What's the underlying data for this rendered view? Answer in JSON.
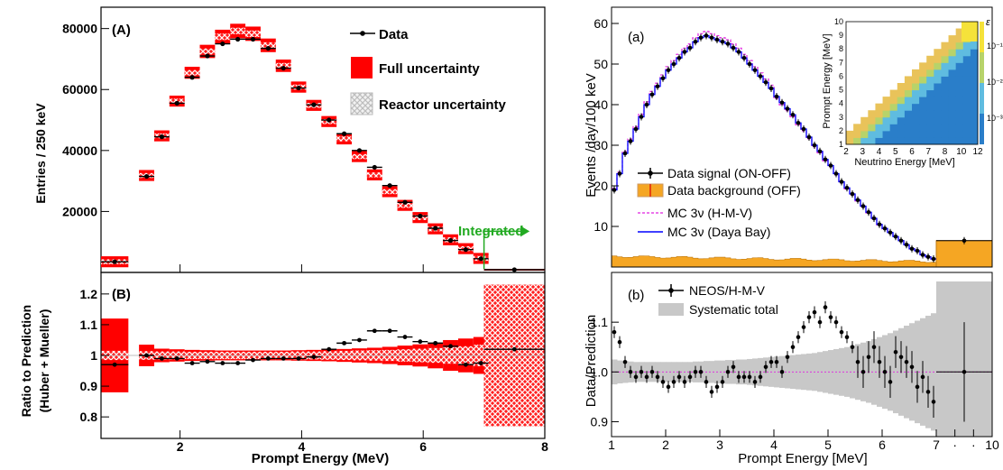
{
  "chart_data": [
    {
      "type": "bar",
      "panel": "(A)",
      "ylabel": "Entries / 250 keV",
      "xlim": [
        0.7,
        8
      ],
      "ylim": [
        0,
        87000
      ],
      "yticks": [
        20000,
        40000,
        60000,
        80000
      ],
      "xticks": [],
      "x": [
        0.925,
        1.45,
        1.7,
        1.95,
        2.2,
        2.45,
        2.7,
        2.95,
        3.2,
        3.45,
        3.7,
        3.95,
        4.2,
        4.45,
        4.7,
        4.95,
        5.2,
        5.45,
        5.7,
        5.95,
        6.2,
        6.45,
        6.7,
        6.95,
        7.5
      ],
      "data": [
        3500,
        31500,
        44500,
        55500,
        64000,
        71000,
        75000,
        76500,
        76500,
        73500,
        67000,
        60500,
        55000,
        50000,
        45500,
        40000,
        34500,
        28500,
        23000,
        18500,
        14500,
        10500,
        7500,
        4500,
        900
      ],
      "prediction": [
        3500,
        31800,
        44800,
        56200,
        65500,
        72500,
        77300,
        79200,
        78300,
        74500,
        67800,
        60800,
        54800,
        49500,
        43800,
        38000,
        32000,
        26500,
        22000,
        18000,
        14300,
        10700,
        7800,
        4600,
        900
      ],
      "annotation": "Integrated",
      "legend": [
        "Data",
        "Full uncertainty",
        "Reactor uncertainty"
      ],
      "colors": {
        "data": "#000000",
        "full": "#ff0000",
        "reactor": "#d9d9d9",
        "annotation": "#22aa22"
      }
    },
    {
      "type": "scatter",
      "panel": "(B)",
      "xlabel": "Prompt Energy (MeV)",
      "ylabel": "Ratio to Prediction",
      "ylabel2": "(Huber + Mueller)",
      "xlim": [
        0.7,
        8
      ],
      "ylim": [
        0.73,
        1.27
      ],
      "xticks": [
        2,
        4,
        6,
        8
      ],
      "yticks": [
        "0.8",
        "0.9",
        "1",
        "1.1",
        "1.2"
      ],
      "x": [
        0.925,
        1.45,
        1.7,
        1.95,
        2.2,
        2.45,
        2.7,
        2.95,
        3.2,
        3.45,
        3.7,
        3.95,
        4.2,
        4.45,
        4.7,
        4.95,
        5.2,
        5.45,
        5.7,
        5.95,
        6.2,
        6.45,
        6.7,
        6.95,
        7.5
      ],
      "ratio": [
        0.97,
        1.0,
        0.99,
        0.99,
        0.975,
        0.98,
        0.975,
        0.975,
        0.985,
        0.99,
        0.99,
        0.99,
        0.995,
        1.02,
        1.04,
        1.05,
        1.08,
        1.08,
        1.06,
        1.045,
        1.04,
        1.03,
        0.97,
        0.975,
        1.02
      ],
      "full_unc_half": [
        0.12,
        0.035,
        0.022,
        0.02,
        0.018,
        0.017,
        0.016,
        0.016,
        0.016,
        0.016,
        0.016,
        0.017,
        0.018,
        0.019,
        0.021,
        0.023,
        0.025,
        0.028,
        0.032,
        0.036,
        0.042,
        0.05,
        0.055,
        0.06,
        0.23
      ],
      "reactor_unc_half": [
        0.015,
        0.014,
        0.013,
        0.013,
        0.012,
        0.012,
        0.012,
        0.012,
        0.012,
        0.012,
        0.012,
        0.013,
        0.013,
        0.014,
        0.015,
        0.016,
        0.017,
        0.018,
        0.02,
        0.022,
        0.024,
        0.027,
        0.03,
        0.035,
        0.23
      ]
    },
    {
      "type": "line",
      "panel": "(a)",
      "ylabel": "Events /day/100 keV",
      "xlim": [
        1,
        10
      ],
      "ylim": [
        0,
        64
      ],
      "yticks": [
        10,
        20,
        30,
        40,
        50,
        60
      ],
      "data_signal": [
        [
          1.05,
          19
        ],
        [
          1.15,
          23
        ],
        [
          1.25,
          28
        ],
        [
          1.35,
          31
        ],
        [
          1.45,
          34
        ],
        [
          1.55,
          37
        ],
        [
          1.65,
          40
        ],
        [
          1.75,
          42.5
        ],
        [
          1.85,
          44.5
        ],
        [
          1.95,
          46.5
        ],
        [
          2.05,
          48.5
        ],
        [
          2.15,
          50
        ],
        [
          2.25,
          51.5
        ],
        [
          2.35,
          53
        ],
        [
          2.45,
          54
        ],
        [
          2.55,
          55.5
        ],
        [
          2.65,
          56.5
        ],
        [
          2.75,
          57
        ],
        [
          2.85,
          56.5
        ],
        [
          2.95,
          56
        ],
        [
          3.05,
          55.5
        ],
        [
          3.15,
          55
        ],
        [
          3.25,
          54
        ],
        [
          3.35,
          53
        ],
        [
          3.45,
          51.5
        ],
        [
          3.55,
          50
        ],
        [
          3.65,
          48.5
        ],
        [
          3.75,
          47
        ],
        [
          3.85,
          45.5
        ],
        [
          3.95,
          44
        ],
        [
          4.05,
          42
        ],
        [
          4.15,
          40.5
        ],
        [
          4.25,
          39
        ],
        [
          4.35,
          37.5
        ],
        [
          4.45,
          35.5
        ],
        [
          4.55,
          34
        ],
        [
          4.65,
          32
        ],
        [
          4.75,
          30
        ],
        [
          4.85,
          28.5
        ],
        [
          4.95,
          26.5
        ],
        [
          5.05,
          25
        ],
        [
          5.15,
          23
        ],
        [
          5.25,
          21
        ],
        [
          5.35,
          19.5
        ],
        [
          5.45,
          18
        ],
        [
          5.55,
          16.5
        ],
        [
          5.65,
          15
        ],
        [
          5.75,
          13.5
        ],
        [
          5.85,
          12
        ],
        [
          5.95,
          10.5
        ],
        [
          6.05,
          9.5
        ],
        [
          6.15,
          8.5
        ],
        [
          6.25,
          7.5
        ],
        [
          6.35,
          6.5
        ],
        [
          6.45,
          5.5
        ],
        [
          6.55,
          4.5
        ],
        [
          6.65,
          4
        ],
        [
          6.75,
          3
        ],
        [
          6.85,
          2.5
        ],
        [
          6.95,
          2
        ],
        [
          8.5,
          6.5
        ]
      ],
      "background_level": 2.2,
      "background_last_bin": 6.5,
      "mc_hmv_peak": 58,
      "mc_daya_peak": 57,
      "legend": [
        "Data signal (ON-OFF)",
        "Data background (OFF)",
        "MC 3ν (H-M-V)",
        "MC 3ν (Daya Bay)"
      ],
      "colors": {
        "signal": "#000000",
        "background": "#f5a623",
        "hmv": "#e020e0",
        "dayabay": "#0000ff"
      }
    },
    {
      "type": "heatmap",
      "panel": "inset",
      "xlabel": "Neutrino Energy [MeV]",
      "ylabel": "Prompt Energy [MeV]",
      "zlabel": "ε",
      "xticks": [
        2,
        3,
        4,
        5,
        6,
        7,
        8,
        10,
        12
      ],
      "yticks": [
        1,
        2,
        3,
        4,
        5,
        6,
        7,
        8,
        9,
        10
      ],
      "zticks": [
        "10⁻¹",
        "10⁻²",
        "10⁻³"
      ]
    },
    {
      "type": "scatter",
      "panel": "(b)",
      "xlabel": "Prompt Energy [MeV]",
      "ylabel": "Data/Prediction",
      "xlim": [
        1,
        10
      ],
      "ylim": [
        0.87,
        1.2
      ],
      "xticks": [
        "1",
        "2",
        "3",
        "4",
        "5",
        "6",
        "7",
        "·",
        "·",
        "10"
      ],
      "yticks": [
        "0.9",
        "1.0",
        "1.1"
      ],
      "x": [
        1.05,
        1.15,
        1.25,
        1.35,
        1.45,
        1.55,
        1.65,
        1.75,
        1.85,
        1.95,
        2.05,
        2.15,
        2.25,
        2.35,
        2.45,
        2.55,
        2.65,
        2.75,
        2.85,
        2.95,
        3.05,
        3.15,
        3.25,
        3.35,
        3.45,
        3.55,
        3.65,
        3.75,
        3.85,
        3.95,
        4.05,
        4.15,
        4.25,
        4.35,
        4.45,
        4.55,
        4.65,
        4.75,
        4.85,
        4.95,
        5.05,
        5.15,
        5.25,
        5.35,
        5.45,
        5.55,
        5.65,
        5.75,
        5.85,
        5.95,
        6.05,
        6.15,
        6.25,
        6.35,
        6.45,
        6.55,
        6.65,
        6.75,
        6.85,
        6.95,
        8.5
      ],
      "ratio": [
        1.08,
        1.06,
        1.02,
        1.0,
        0.99,
        1.0,
        0.99,
        1.0,
        0.99,
        0.98,
        0.97,
        0.98,
        0.99,
        0.98,
        0.99,
        1.0,
        1.0,
        0.98,
        0.96,
        0.97,
        0.98,
        1.0,
        1.01,
        0.99,
        0.99,
        0.99,
        0.98,
        0.99,
        1.01,
        1.02,
        1.02,
        1.0,
        1.03,
        1.05,
        1.07,
        1.09,
        1.11,
        1.12,
        1.1,
        1.13,
        1.11,
        1.1,
        1.08,
        1.07,
        1.05,
        1.02,
        1.0,
        1.03,
        1.05,
        1.02,
        1.0,
        0.98,
        1.04,
        1.03,
        1.02,
        1.01,
        0.97,
        0.99,
        0.96,
        0.94,
        1.0
      ],
      "syst_half": [
        0.025,
        0.023,
        0.022,
        0.021,
        0.02,
        0.02,
        0.02,
        0.02,
        0.02,
        0.02,
        0.02,
        0.02,
        0.02,
        0.02,
        0.02,
        0.021,
        0.021,
        0.022,
        0.022,
        0.023,
        0.023,
        0.024,
        0.024,
        0.025,
        0.025,
        0.026,
        0.027,
        0.028,
        0.029,
        0.03,
        0.031,
        0.032,
        0.033,
        0.034,
        0.035,
        0.036,
        0.037,
        0.038,
        0.04,
        0.042,
        0.044,
        0.046,
        0.048,
        0.05,
        0.053,
        0.056,
        0.059,
        0.062,
        0.066,
        0.07,
        0.074,
        0.078,
        0.083,
        0.088,
        0.093,
        0.098,
        0.103,
        0.108,
        0.113,
        0.118,
        0.17
      ],
      "legend": [
        "NEOS/H-M-V",
        "Systematic total"
      ],
      "colors": {
        "syst": "#c8c8c8",
        "data": "#000000"
      }
    }
  ]
}
